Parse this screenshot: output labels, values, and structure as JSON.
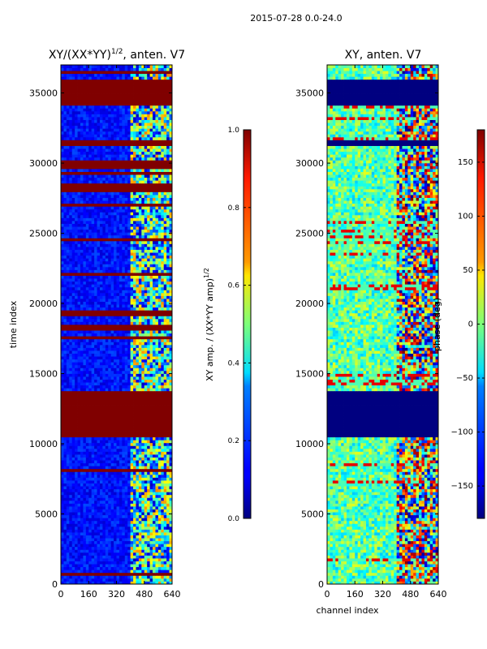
{
  "figure": {
    "suptitle": "2015-07-28 0.0-24.0"
  },
  "chart_data": [
    {
      "type": "heatmap",
      "title": "XY/(XX*YY)",
      "title_exponent": "1/2",
      "title_suffix": ", anten. V7",
      "xlabel": "",
      "ylabel": "time index",
      "xlim": [
        0,
        640
      ],
      "ylim": [
        0,
        37000
      ],
      "x_ticks": [
        0,
        160,
        320,
        480,
        640
      ],
      "y_ticks": [
        0,
        5000,
        10000,
        15000,
        20000,
        25000,
        30000,
        35000
      ],
      "colorbar": {
        "label": "XY amp. / (XX*YY amp)",
        "label_exponent": "1/2",
        "min": 0.0,
        "max": 1.0,
        "ticks": [
          "0.0",
          "0.2",
          "0.4",
          "0.6",
          "0.8",
          "1.0"
        ]
      },
      "flagged_bands": [
        [
          34100,
          35900
        ],
        [
          31200,
          31700
        ],
        [
          29900,
          30200
        ],
        [
          28000,
          28500
        ],
        [
          10400,
          13800
        ],
        [
          19100,
          19600
        ],
        [
          17400,
          17700
        ],
        [
          18000,
          18200
        ],
        [
          36300,
          36500
        ]
      ],
      "signal_channel_range": [
        400,
        640
      ]
    },
    {
      "type": "heatmap",
      "title": "XY, anten. V7",
      "xlabel": "channel index",
      "ylabel": "",
      "xlim": [
        0,
        640
      ],
      "ylim": [
        0,
        37000
      ],
      "x_ticks": [
        0,
        160,
        320,
        480,
        640
      ],
      "y_ticks": [
        0,
        5000,
        10000,
        15000,
        20000,
        25000,
        30000,
        35000
      ],
      "colorbar": {
        "label": "phase (deg)",
        "min": -180,
        "max": 180,
        "ticks": [
          "−150",
          "−100",
          "−50",
          "0",
          "50",
          "100",
          "150"
        ]
      },
      "flagged_bands": [
        [
          34100,
          35900
        ],
        [
          10400,
          13800
        ],
        [
          31200,
          31700
        ]
      ],
      "signal_channel_range": [
        400,
        640
      ]
    }
  ]
}
